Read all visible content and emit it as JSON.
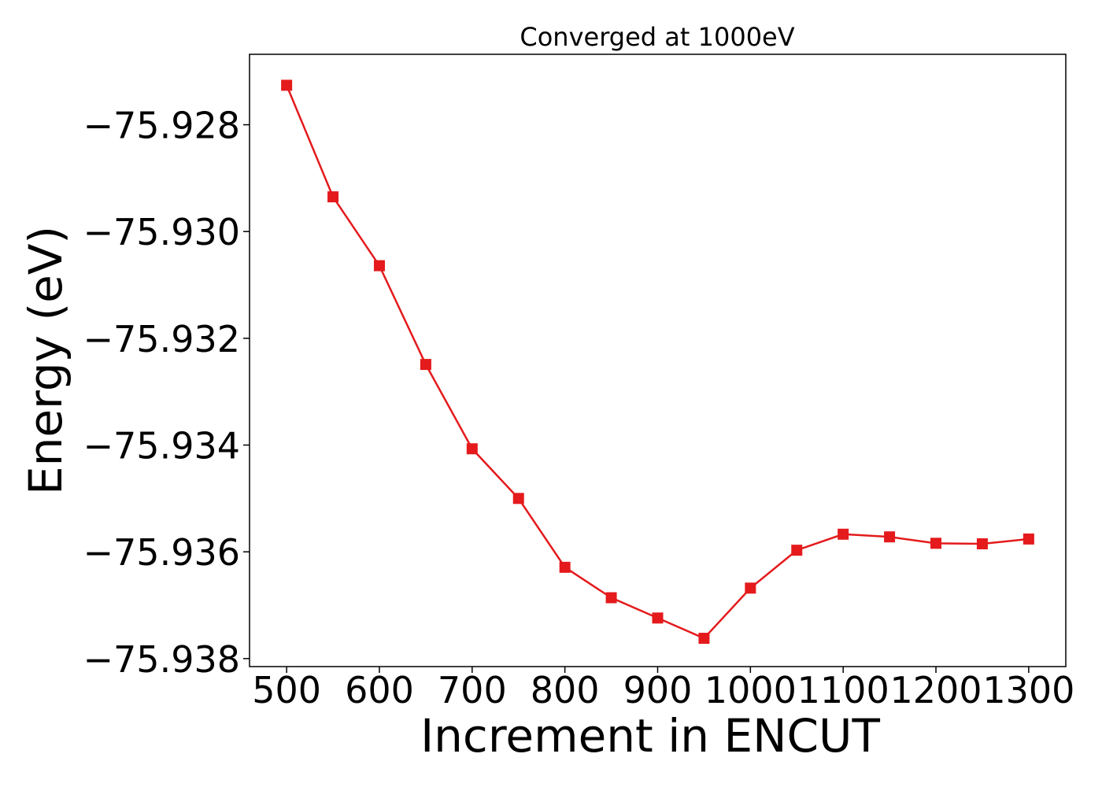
{
  "chart_data": {
    "type": "line",
    "title": "Converged at 1000eV",
    "xlabel": "Increment in ENCUT",
    "ylabel": "Energy (eV)",
    "xlim": [
      460,
      1340
    ],
    "ylim": [
      -75.93815,
      -75.92668
    ],
    "xticks": [
      500,
      600,
      700,
      800,
      900,
      1000,
      1100,
      1200,
      1300
    ],
    "xtick_labels": [
      "500",
      "600",
      "700",
      "800",
      "900",
      "1000",
      "1100",
      "1200",
      "1300"
    ],
    "yticks": [
      -75.928,
      -75.93,
      -75.932,
      -75.934,
      -75.936,
      -75.938
    ],
    "ytick_labels": [
      "−75.928",
      "−75.930",
      "−75.932",
      "−75.934",
      "−75.936",
      "−75.938"
    ],
    "grid": false,
    "series": [
      {
        "marker": "square",
        "color": "#e41a1c",
        "x": [
          500,
          550,
          600,
          650,
          700,
          750,
          800,
          850,
          900,
          950,
          1000,
          1050,
          1100,
          1150,
          1200,
          1250,
          1300
        ],
        "y": [
          -75.92726,
          -75.92935,
          -75.93064,
          -75.93249,
          -75.93407,
          -75.935,
          -75.93629,
          -75.93686,
          -75.93724,
          -75.93762,
          -75.93668,
          -75.93597,
          -75.93567,
          -75.93572,
          -75.93584,
          -75.93585,
          -75.93576
        ]
      }
    ]
  }
}
